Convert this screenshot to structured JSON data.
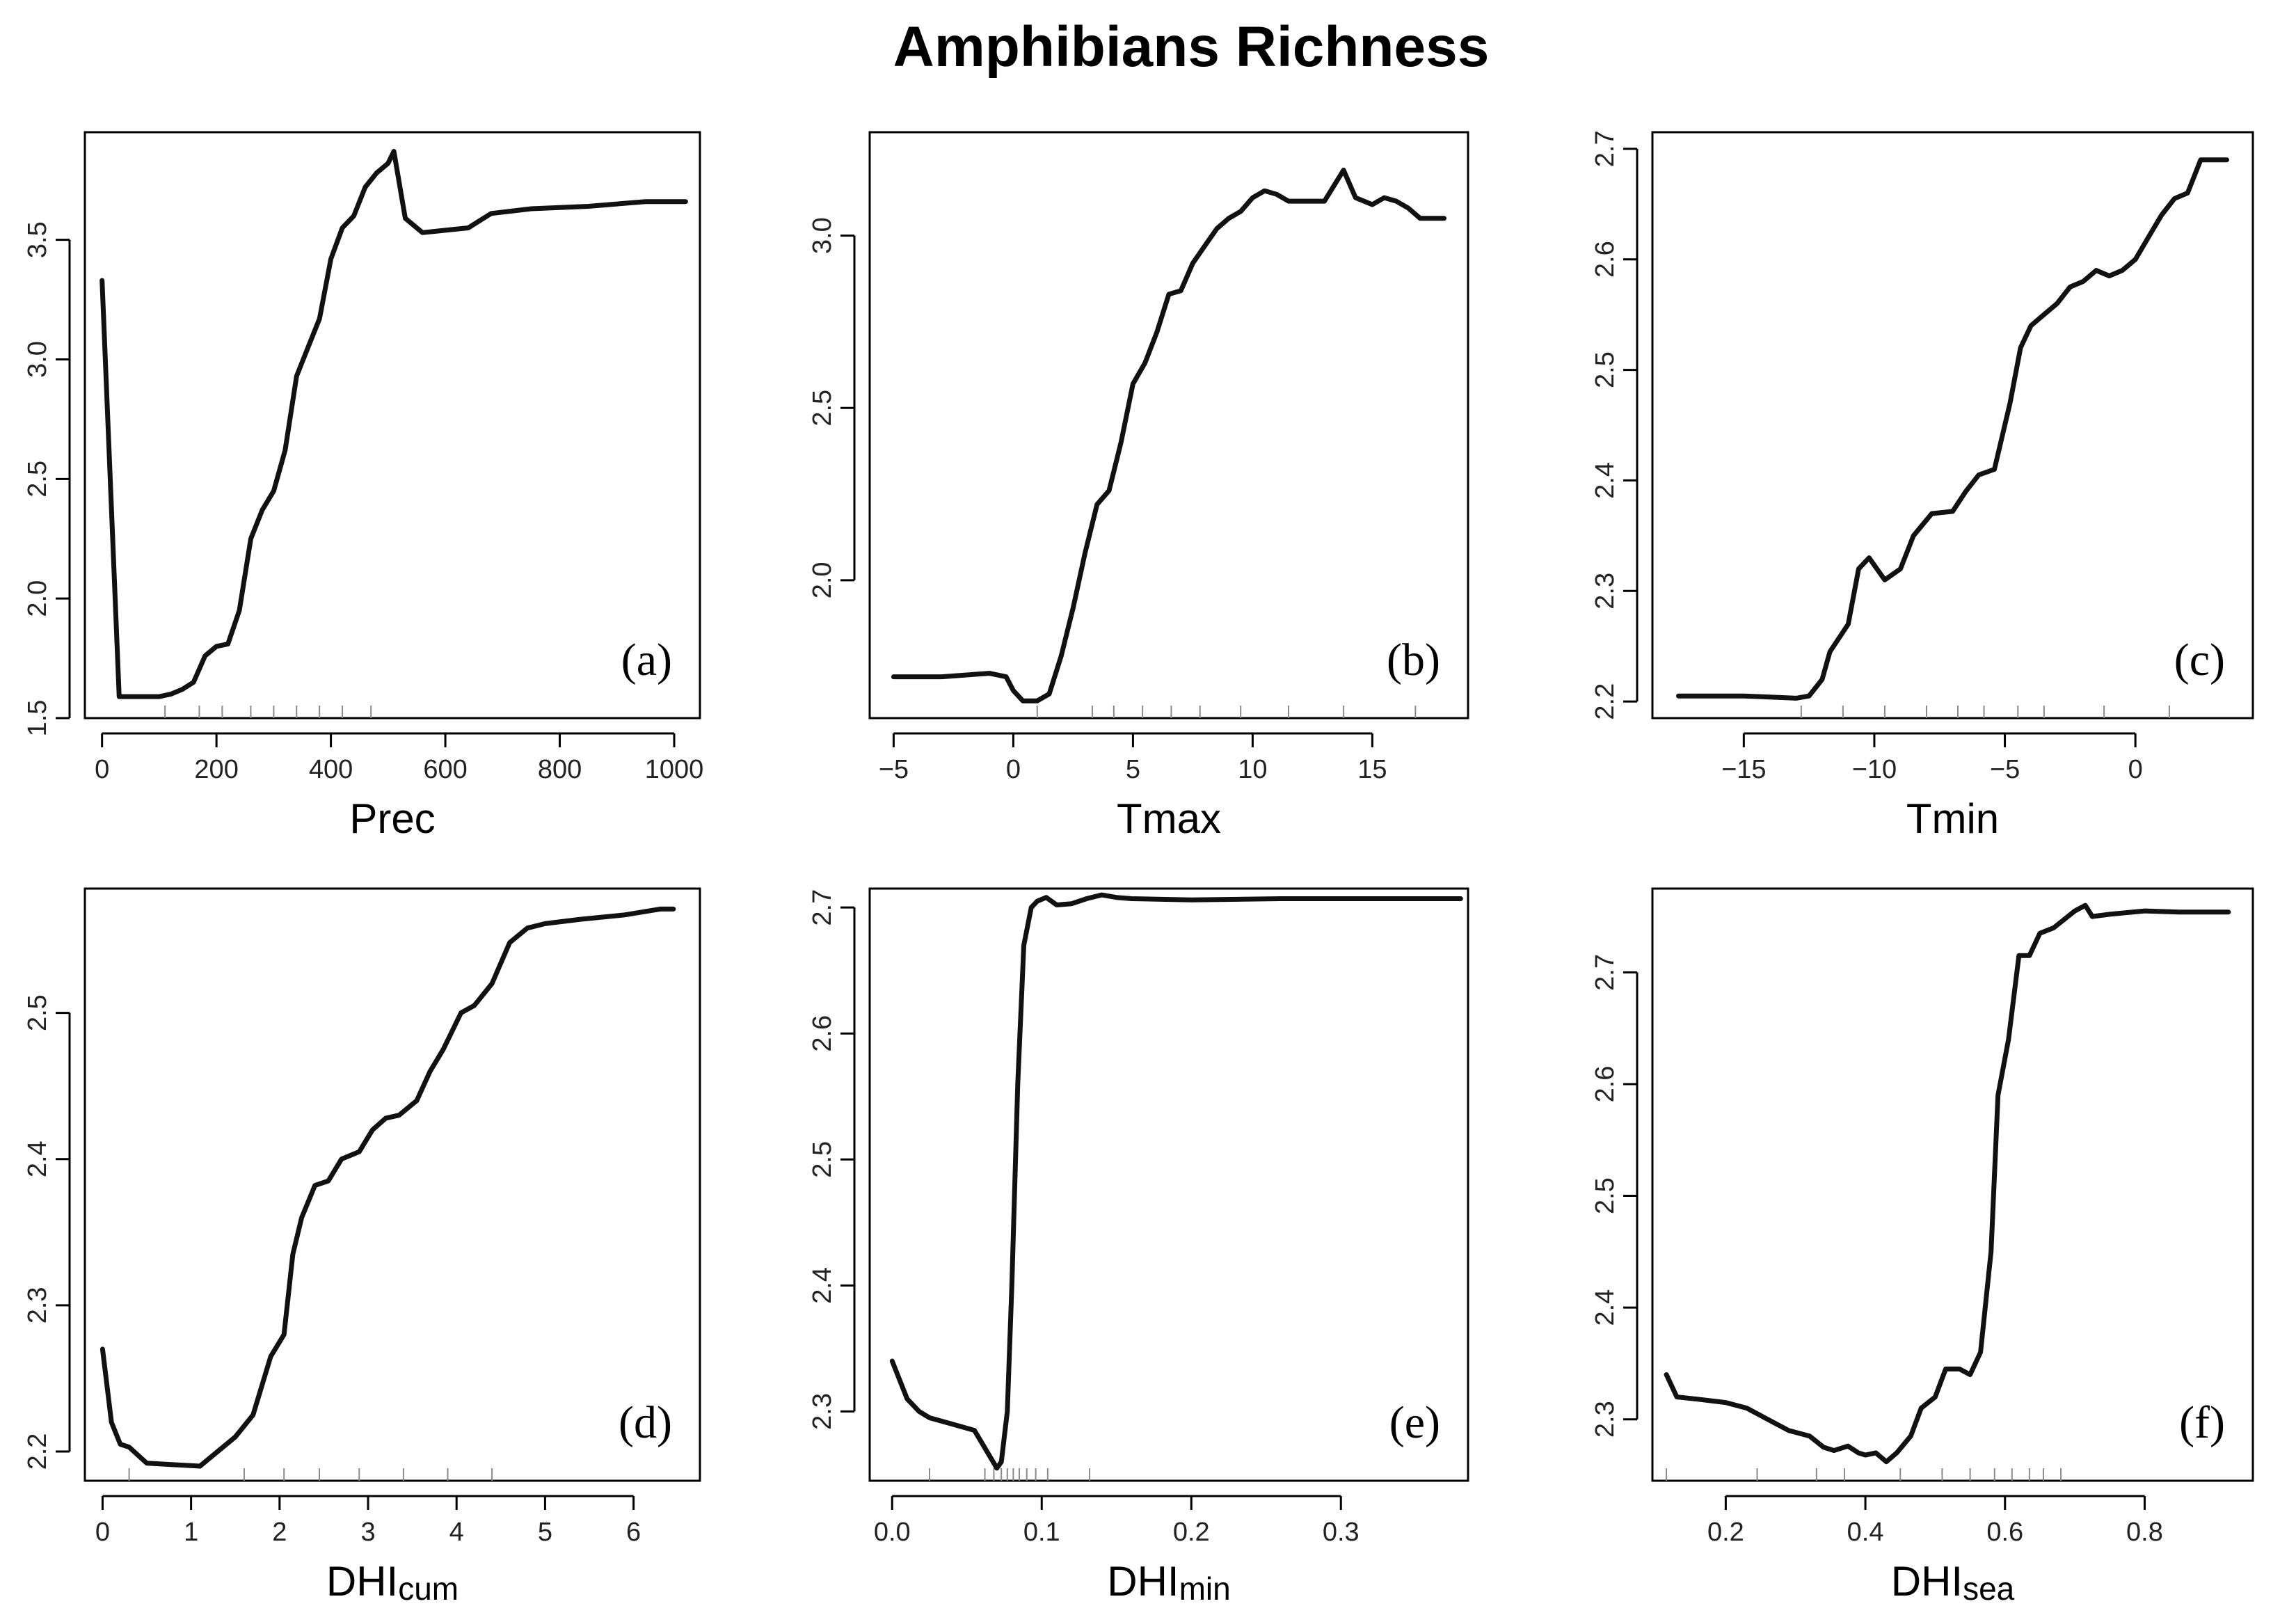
{
  "figure": {
    "title": "Amphibians Richness"
  },
  "chart_data": [
    {
      "type": "line",
      "id": "a",
      "panel_label": "(a)",
      "xlabel": "Prec",
      "xlabel_sub": "",
      "xlim": [
        -30,
        1045
      ],
      "ylim": [
        1.5,
        3.95
      ],
      "xticks": [
        0,
        200,
        400,
        600,
        800,
        1000
      ],
      "xtick_labels": [
        "0",
        "200",
        "400",
        "600",
        "800",
        "1000"
      ],
      "yticks": [
        1.5,
        2.0,
        2.5,
        3.0,
        3.5
      ],
      "ytick_labels": [
        "1.5",
        "2.0",
        "2.5",
        "3.0",
        "3.5"
      ],
      "rug": [
        110,
        170,
        210,
        260,
        300,
        340,
        380,
        420,
        470
      ],
      "x": [
        0,
        30,
        60,
        100,
        120,
        140,
        160,
        180,
        200,
        220,
        240,
        260,
        280,
        300,
        320,
        340,
        360,
        380,
        400,
        420,
        440,
        460,
        480,
        500,
        510,
        530,
        560,
        600,
        640,
        680,
        750,
        850,
        950,
        1020
      ],
      "y": [
        3.33,
        1.59,
        1.59,
        1.59,
        1.6,
        1.62,
        1.65,
        1.76,
        1.8,
        1.81,
        1.95,
        2.25,
        2.37,
        2.45,
        2.62,
        2.93,
        3.05,
        3.17,
        3.42,
        3.55,
        3.6,
        3.72,
        3.78,
        3.82,
        3.87,
        3.59,
        3.53,
        3.54,
        3.55,
        3.61,
        3.63,
        3.64,
        3.66,
        3.66
      ]
    },
    {
      "type": "line",
      "id": "b",
      "panel_label": "(b)",
      "xlabel": "Tmax",
      "xlabel_sub": "",
      "xlim": [
        -6,
        19
      ],
      "ylim": [
        1.6,
        3.3
      ],
      "xticks": [
        -5,
        0,
        5,
        10,
        15
      ],
      "xtick_labels": [
        "−5",
        "0",
        "5",
        "10",
        "15"
      ],
      "yticks": [
        2.0,
        2.5,
        3.0
      ],
      "ytick_labels": [
        "2.0",
        "2.5",
        "3.0"
      ],
      "rug": [
        1,
        3.3,
        4.2,
        5.4,
        6.6,
        7.8,
        9.5,
        11.5,
        13.8,
        16.8
      ],
      "x": [
        -5,
        -3,
        -1,
        -0.3,
        0,
        0.4,
        1,
        1.5,
        2,
        2.5,
        3,
        3.5,
        4,
        4.5,
        5,
        5.5,
        6,
        6.5,
        7,
        7.5,
        8,
        8.5,
        9,
        9.5,
        10,
        10.5,
        11,
        11.5,
        12,
        13,
        13.8,
        14.3,
        15,
        15.5,
        16,
        16.5,
        17,
        18
      ],
      "y": [
        1.72,
        1.72,
        1.73,
        1.72,
        1.68,
        1.65,
        1.65,
        1.67,
        1.78,
        1.92,
        2.08,
        2.22,
        2.26,
        2.4,
        2.57,
        2.63,
        2.72,
        2.83,
        2.84,
        2.92,
        2.97,
        3.02,
        3.05,
        3.07,
        3.11,
        3.13,
        3.12,
        3.1,
        3.1,
        3.1,
        3.19,
        3.11,
        3.09,
        3.11,
        3.1,
        3.08,
        3.05,
        3.05
      ]
    },
    {
      "type": "line",
      "id": "c",
      "panel_label": "(c)",
      "xlabel": "Tmin",
      "xlabel_sub": "",
      "xlim": [
        -18.5,
        4.5
      ],
      "ylim": [
        2.185,
        2.715
      ],
      "xticks": [
        -15,
        -10,
        -5,
        0
      ],
      "xtick_labels": [
        "−15",
        "−10",
        "−5",
        "0"
      ],
      "yticks": [
        2.2,
        2.3,
        2.4,
        2.5,
        2.6,
        2.7
      ],
      "ytick_labels": [
        "2.2",
        "2.3",
        "2.4",
        "2.5",
        "2.6",
        "2.7"
      ],
      "rug": [
        -12.8,
        -11.2,
        -9.6,
        -8,
        -6.8,
        -5.8,
        -4.5,
        -3.5,
        -1.2,
        1.3
      ],
      "x": [
        -17.5,
        -15,
        -14,
        -13,
        -12.5,
        -12,
        -11.7,
        -11,
        -10.6,
        -10.2,
        -9.6,
        -9,
        -8.5,
        -7.8,
        -7,
        -6.5,
        -6,
        -5.4,
        -4.8,
        -4.4,
        -4,
        -3.5,
        -3,
        -2.5,
        -2,
        -1.5,
        -1,
        -0.5,
        0,
        0.5,
        1,
        1.5,
        2,
        2.5,
        3.5
      ],
      "y": [
        2.205,
        2.205,
        2.204,
        2.203,
        2.205,
        2.22,
        2.245,
        2.27,
        2.32,
        2.33,
        2.31,
        2.32,
        2.35,
        2.37,
        2.372,
        2.39,
        2.405,
        2.41,
        2.47,
        2.52,
        2.54,
        2.55,
        2.56,
        2.575,
        2.58,
        2.59,
        2.585,
        2.59,
        2.6,
        2.62,
        2.64,
        2.655,
        2.66,
        2.69,
        2.69
      ]
    },
    {
      "type": "line",
      "id": "d",
      "panel_label": "(d)",
      "xlabel": "DHI",
      "xlabel_sub": "cum",
      "xlim": [
        -0.2,
        6.75
      ],
      "ylim": [
        2.18,
        2.585
      ],
      "xticks": [
        0,
        1,
        2,
        3,
        4,
        5,
        6
      ],
      "xtick_labels": [
        "0",
        "1",
        "2",
        "3",
        "4",
        "5",
        "6"
      ],
      "yticks": [
        2.2,
        2.3,
        2.4,
        2.5
      ],
      "ytick_labels": [
        "2.2",
        "2.3",
        "2.4",
        "2.5"
      ],
      "rug": [
        0.3,
        1.6,
        2.05,
        2.45,
        2.9,
        3.4,
        3.9,
        4.4
      ],
      "x": [
        0,
        0.1,
        0.2,
        0.3,
        0.5,
        0.8,
        1.1,
        1.3,
        1.5,
        1.7,
        1.9,
        2.05,
        2.15,
        2.25,
        2.4,
        2.55,
        2.7,
        2.9,
        3.05,
        3.2,
        3.35,
        3.55,
        3.7,
        3.85,
        4.05,
        4.2,
        4.4,
        4.6,
        4.8,
        5.0,
        5.4,
        5.9,
        6.3,
        6.45
      ],
      "y": [
        2.27,
        2.22,
        2.205,
        2.203,
        2.192,
        2.191,
        2.19,
        2.2,
        2.21,
        2.225,
        2.265,
        2.28,
        2.335,
        2.36,
        2.382,
        2.385,
        2.4,
        2.405,
        2.42,
        2.428,
        2.43,
        2.44,
        2.46,
        2.475,
        2.5,
        2.505,
        2.52,
        2.548,
        2.558,
        2.561,
        2.564,
        2.567,
        2.571,
        2.571
      ]
    },
    {
      "type": "line",
      "id": "e",
      "panel_label": "(e)",
      "xlabel": "DHI",
      "xlabel_sub": "min",
      "xlim": [
        -0.015,
        0.385
      ],
      "ylim": [
        2.245,
        2.715
      ],
      "xticks": [
        0,
        0.1,
        0.2,
        0.3
      ],
      "xtick_labels": [
        "0.0",
        "0.1",
        "0.2",
        "0.3"
      ],
      "yticks": [
        2.3,
        2.4,
        2.5,
        2.6,
        2.7
      ],
      "ytick_labels": [
        "2.3",
        "2.4",
        "2.5",
        "2.6",
        "2.7"
      ],
      "rug": [
        0.025,
        0.062,
        0.068,
        0.073,
        0.077,
        0.081,
        0.085,
        0.09,
        0.096,
        0.104,
        0.132
      ],
      "x": [
        0,
        0.01,
        0.018,
        0.025,
        0.04,
        0.055,
        0.07,
        0.073,
        0.077,
        0.08,
        0.084,
        0.088,
        0.093,
        0.097,
        0.103,
        0.11,
        0.12,
        0.13,
        0.14,
        0.15,
        0.16,
        0.2,
        0.26,
        0.32,
        0.38
      ],
      "y": [
        2.34,
        2.31,
        2.3,
        2.295,
        2.29,
        2.285,
        2.255,
        2.26,
        2.3,
        2.4,
        2.56,
        2.67,
        2.7,
        2.705,
        2.708,
        2.702,
        2.703,
        2.707,
        2.71,
        2.708,
        2.707,
        2.706,
        2.707,
        2.707,
        2.707
      ]
    },
    {
      "type": "line",
      "id": "f",
      "panel_label": "(f)",
      "xlabel": "DHI",
      "xlabel_sub": "sea",
      "xlim": [
        0.095,
        0.955
      ],
      "ylim": [
        2.245,
        2.775
      ],
      "xticks": [
        0.2,
        0.4,
        0.6,
        0.8
      ],
      "xtick_labels": [
        "0.2",
        "0.4",
        "0.6",
        "0.8"
      ],
      "yticks": [
        2.3,
        2.4,
        2.5,
        2.6,
        2.7
      ],
      "ytick_labels": [
        "2.3",
        "2.4",
        "2.5",
        "2.6",
        "2.7"
      ],
      "rug": [
        0.115,
        0.245,
        0.33,
        0.37,
        0.45,
        0.51,
        0.55,
        0.585,
        0.61,
        0.635,
        0.655,
        0.68
      ],
      "x": [
        0.115,
        0.13,
        0.16,
        0.2,
        0.23,
        0.26,
        0.29,
        0.32,
        0.34,
        0.355,
        0.375,
        0.39,
        0.4,
        0.415,
        0.43,
        0.445,
        0.465,
        0.48,
        0.5,
        0.515,
        0.535,
        0.55,
        0.565,
        0.58,
        0.59,
        0.605,
        0.62,
        0.635,
        0.65,
        0.67,
        0.7,
        0.715,
        0.725,
        0.75,
        0.8,
        0.85,
        0.92
      ],
      "y": [
        2.34,
        2.32,
        2.318,
        2.315,
        2.31,
        2.3,
        2.29,
        2.285,
        2.275,
        2.272,
        2.276,
        2.27,
        2.268,
        2.27,
        2.262,
        2.27,
        2.285,
        2.31,
        2.32,
        2.345,
        2.345,
        2.34,
        2.36,
        2.45,
        2.59,
        2.64,
        2.715,
        2.715,
        2.735,
        2.74,
        2.755,
        2.76,
        2.75,
        2.752,
        2.755,
        2.754,
        2.754
      ]
    }
  ]
}
